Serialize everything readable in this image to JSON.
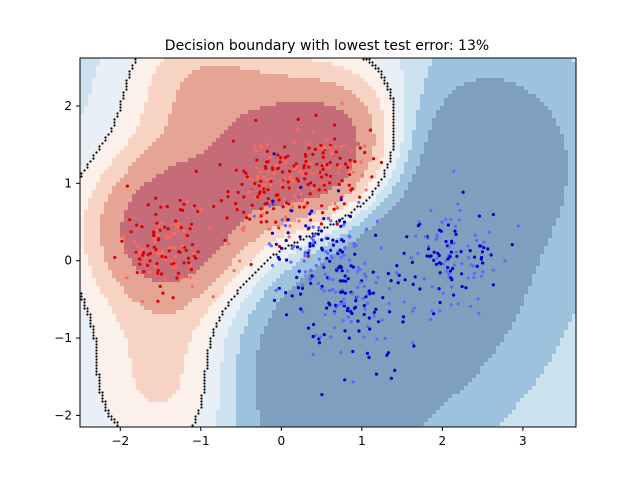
{
  "chart_data": {
    "type": "scatter",
    "title": "Decision boundary with lowest test error: 13%",
    "xlabel": "",
    "ylabel": "",
    "xlim": [
      -2.5,
      3.66
    ],
    "ylim": [
      -2.15,
      2.62
    ],
    "x_ticks": [
      -2,
      -1,
      0,
      1,
      2,
      3
    ],
    "y_ticks": [
      -2,
      -1,
      0,
      1,
      2
    ],
    "grid": false,
    "legend": "none",
    "background": "decision function filled contours (red = class A, blue = class B) with black decision boundary",
    "colors": {
      "class_a_dark": "#dd0000",
      "class_a_light": "#ff6a5a",
      "class_b_dark": "#0000cc",
      "class_b_light": "#5a6aff",
      "contour_red_1": "#c66b78",
      "contour_red_2": "#e5a595",
      "contour_red_3": "#f7d4c3",
      "contour_red_4": "#fcf0ea",
      "contour_blue_1": "#e8eff6",
      "contour_blue_2": "#cde2ef",
      "contour_blue_3": "#9cc2de",
      "contour_blue_4": "#7f9fbf",
      "boundary": "#000000"
    },
    "series": [
      {
        "cluster_centers": [
          [
            -1.45,
            0.2
          ],
          [
            0.45,
            1.2
          ],
          [
            -0.2,
            0.85
          ]
        ],
        "spread": [
          0.3,
          0.3
        ],
        "points_per_cluster": 130
      },
      {
        "cluster_centers": [
          [
            2.05,
            0.05
          ],
          [
            0.9,
            -0.55
          ],
          [
            0.45,
            0.15
          ]
        ],
        "spread": [
          0.35,
          0.35
        ],
        "points_per_cluster": 130
      }
    ]
  }
}
